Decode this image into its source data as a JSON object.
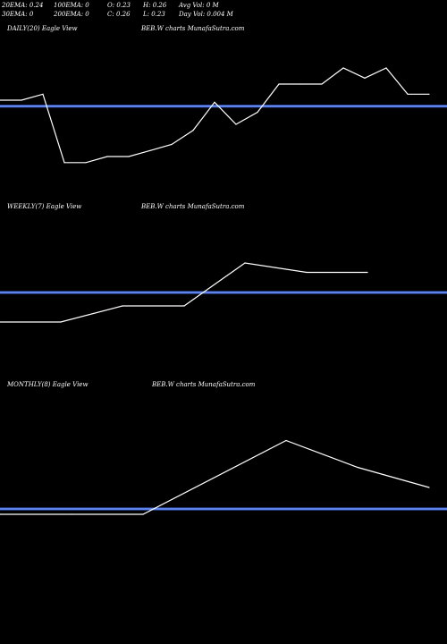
{
  "stats": {
    "ema20": "20EMA: 0.24",
    "ema100": "100EMA: 0",
    "open": "O: 0.23",
    "high": "H: 0.26",
    "avg_vol": "Avg Vol: 0  M",
    "ema30": "30EMA: 0",
    "ema200": "200EMA: 0",
    "close": "C: 0.26",
    "low": "L: 0.23",
    "day_vol": "Day Vol: 0.004  M"
  },
  "panels": [
    {
      "label": "DAILY(20) Eagle   View",
      "source": "BEB.W charts MunafaSutra.com"
    },
    {
      "label": "WEEKLY(7) Eagle   View",
      "source": "BEB.W charts MunafaSutra.com"
    },
    {
      "label": "MONTHLY(8) Eagle   View",
      "source": "BEB.W charts MunafaSutra.com"
    }
  ],
  "colors": {
    "price_line": "#ffffff",
    "reference_line": "#4169e1",
    "background": "#000000"
  },
  "chart_data": [
    {
      "type": "line",
      "title": "DAILY(20) Eagle   View",
      "series": [
        {
          "values": [
            0.248,
            0.248,
            0.251,
            0.217,
            0.217,
            0.22,
            0.22,
            0.223,
            0.226,
            0.233,
            0.247,
            0.236,
            0.242,
            0.256,
            0.256,
            0.256,
            0.264,
            0.259,
            0.264,
            0.251,
            0.251
          ]
        }
      ],
      "reference": 0.245,
      "ylim": [
        0.2,
        0.28
      ]
    },
    {
      "type": "line",
      "title": "WEEKLY(7) Eagle   View",
      "series": [
        {
          "values": [
            0.22,
            0.22,
            0.232,
            0.232,
            0.264,
            0.257,
            0.257
          ]
        }
      ],
      "reference": 0.242,
      "ylim": [
        0.18,
        0.3
      ]
    },
    {
      "type": "line",
      "title": "MONTHLY(8) Eagle   View",
      "series": [
        {
          "values": [
            0.21,
            0.21,
            0.21,
            0.265,
            0.245,
            0.23
          ]
        }
      ],
      "reference": 0.214,
      "ylim": [
        0.18,
        0.3
      ]
    }
  ]
}
